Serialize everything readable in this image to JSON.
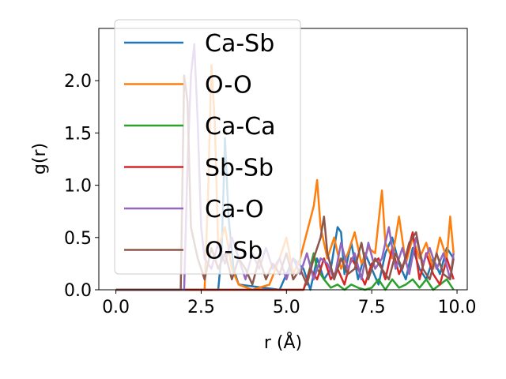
{
  "chart_data": {
    "type": "line",
    "xlabel": "r (Å)",
    "ylabel": "g(r)",
    "xlim": [
      -0.5,
      10.3
    ],
    "ylim": [
      0.0,
      2.5
    ],
    "xticks": [
      0.0,
      2.5,
      5.0,
      7.5,
      10.0
    ],
    "xtick_labels": [
      "0.0",
      "2.5",
      "5.0",
      "7.5",
      "10.0"
    ],
    "yticks": [
      0.0,
      0.5,
      1.0,
      1.5,
      2.0
    ],
    "ytick_labels": [
      "0.0",
      "0.5",
      "1.0",
      "1.5",
      "2.0"
    ],
    "grid": false,
    "legend_position": "upper left",
    "series": [
      {
        "name": "Ca-Sb",
        "color": "#1f77b4",
        "points": [
          [
            0,
            0
          ],
          [
            3.0,
            0
          ],
          [
            3.1,
            0.35
          ],
          [
            3.2,
            1.45
          ],
          [
            3.3,
            0.7
          ],
          [
            3.45,
            0.2
          ],
          [
            3.6,
            0.05
          ],
          [
            4.8,
            0
          ],
          [
            5.0,
            0.15
          ],
          [
            5.2,
            0.3
          ],
          [
            5.5,
            0.2
          ],
          [
            5.7,
            0.0
          ],
          [
            5.9,
            0.3
          ],
          [
            6.1,
            0.1
          ],
          [
            6.3,
            0.2
          ],
          [
            6.5,
            0.6
          ],
          [
            6.6,
            0.55
          ],
          [
            6.7,
            0.15
          ],
          [
            6.9,
            0.45
          ],
          [
            7.1,
            0.1
          ],
          [
            7.3,
            0.35
          ],
          [
            7.5,
            0.2
          ],
          [
            7.7,
            0.05
          ],
          [
            7.9,
            0.35
          ],
          [
            8.1,
            0.5
          ],
          [
            8.3,
            0.25
          ],
          [
            8.5,
            0.1
          ],
          [
            8.7,
            0.4
          ],
          [
            8.9,
            0.2
          ],
          [
            9.1,
            0.1
          ],
          [
            9.3,
            0.3
          ],
          [
            9.5,
            0.15
          ],
          [
            9.7,
            0.4
          ],
          [
            9.9,
            0.3
          ]
        ]
      },
      {
        "name": "O-O",
        "color": "#ff7f0e",
        "points": [
          [
            0,
            0
          ],
          [
            2.6,
            0
          ],
          [
            2.7,
            0.9
          ],
          [
            2.8,
            2.15
          ],
          [
            2.9,
            1.6
          ],
          [
            3.0,
            0.4
          ],
          [
            3.2,
            0.6
          ],
          [
            3.4,
            0.2
          ],
          [
            3.6,
            0.05
          ],
          [
            4.0,
            0
          ],
          [
            4.5,
            0.05
          ],
          [
            4.8,
            0.3
          ],
          [
            5.0,
            0.5
          ],
          [
            5.2,
            0.15
          ],
          [
            5.4,
            0.3
          ],
          [
            5.6,
            0.55
          ],
          [
            5.8,
            0.8
          ],
          [
            5.9,
            1.05
          ],
          [
            6.0,
            0.6
          ],
          [
            6.2,
            0.3
          ],
          [
            6.4,
            0.5
          ],
          [
            6.6,
            0.2
          ],
          [
            6.8,
            0.35
          ],
          [
            7.0,
            0.55
          ],
          [
            7.2,
            0.25
          ],
          [
            7.4,
            0.4
          ],
          [
            7.6,
            0.35
          ],
          [
            7.8,
            0.95
          ],
          [
            7.9,
            0.45
          ],
          [
            8.1,
            0.3
          ],
          [
            8.3,
            0.7
          ],
          [
            8.5,
            0.25
          ],
          [
            8.7,
            0.5
          ],
          [
            8.9,
            0.3
          ],
          [
            9.1,
            0.45
          ],
          [
            9.3,
            0.2
          ],
          [
            9.5,
            0.5
          ],
          [
            9.7,
            0.3
          ],
          [
            9.8,
            0.7
          ],
          [
            9.9,
            0.35
          ]
        ]
      },
      {
        "name": "Ca-Ca",
        "color": "#2ca02c",
        "points": [
          [
            0,
            0
          ],
          [
            5.5,
            0
          ],
          [
            5.6,
            0.1
          ],
          [
            5.8,
            0.35
          ],
          [
            5.9,
            0.2
          ],
          [
            6.1,
            0.1
          ],
          [
            6.3,
            0.02
          ],
          [
            6.5,
            0.05
          ],
          [
            6.7,
            0.0
          ],
          [
            6.9,
            0.05
          ],
          [
            7.1,
            0.02
          ],
          [
            7.3,
            0.0
          ],
          [
            7.5,
            0.02
          ],
          [
            7.7,
            0.1
          ],
          [
            7.9,
            0.0
          ],
          [
            8.1,
            0.1
          ],
          [
            8.3,
            0.02
          ],
          [
            8.5,
            0.05
          ],
          [
            8.7,
            0.1
          ],
          [
            8.9,
            0.02
          ],
          [
            9.1,
            0.1
          ],
          [
            9.3,
            0.0
          ],
          [
            9.5,
            0.05
          ],
          [
            9.7,
            0.1
          ],
          [
            9.9,
            0.0
          ]
        ]
      },
      {
        "name": "Sb-Sb",
        "color": "#d62728",
        "points": [
          [
            0,
            0
          ],
          [
            5.5,
            0
          ],
          [
            5.7,
            0.2
          ],
          [
            5.9,
            0.1
          ],
          [
            6.1,
            0.3
          ],
          [
            6.3,
            0.1
          ],
          [
            6.5,
            0.2
          ],
          [
            6.7,
            0.05
          ],
          [
            6.9,
            0.3
          ],
          [
            7.1,
            0.2
          ],
          [
            7.3,
            0.05
          ],
          [
            7.5,
            0.25
          ],
          [
            7.7,
            0.3
          ],
          [
            7.9,
            0.1
          ],
          [
            8.1,
            0.4
          ],
          [
            8.3,
            0.15
          ],
          [
            8.5,
            0.3
          ],
          [
            8.7,
            0.55
          ],
          [
            8.9,
            0.1
          ],
          [
            9.1,
            0.35
          ],
          [
            9.3,
            0.15
          ],
          [
            9.5,
            0.05
          ],
          [
            9.7,
            0.3
          ],
          [
            9.9,
            0.1
          ]
        ]
      },
      {
        "name": "Ca-O",
        "color": "#9467bd",
        "points": [
          [
            0,
            0
          ],
          [
            2.0,
            0
          ],
          [
            2.1,
            1.2
          ],
          [
            2.2,
            2.05
          ],
          [
            2.3,
            2.35
          ],
          [
            2.4,
            1.6
          ],
          [
            2.5,
            0.6
          ],
          [
            2.6,
            0.3
          ],
          [
            2.8,
            0.2
          ],
          [
            3.0,
            0.45
          ],
          [
            3.2,
            0.25
          ],
          [
            3.4,
            0.5
          ],
          [
            3.6,
            0.3
          ],
          [
            3.8,
            0.1
          ],
          [
            4.0,
            0.35
          ],
          [
            4.2,
            0.2
          ],
          [
            4.4,
            0.4
          ],
          [
            4.6,
            0.2
          ],
          [
            4.8,
            0.3
          ],
          [
            5.0,
            0.1
          ],
          [
            5.2,
            0.3
          ],
          [
            5.4,
            0.15
          ],
          [
            5.6,
            0.35
          ],
          [
            5.8,
            0.1
          ],
          [
            6.0,
            0.3
          ],
          [
            6.2,
            0.25
          ],
          [
            6.4,
            0.1
          ],
          [
            6.6,
            0.45
          ],
          [
            6.8,
            0.2
          ],
          [
            7.0,
            0.35
          ],
          [
            7.2,
            0.1
          ],
          [
            7.4,
            0.45
          ],
          [
            7.6,
            0.2
          ],
          [
            7.8,
            0.3
          ],
          [
            8.0,
            0.6
          ],
          [
            8.2,
            0.2
          ],
          [
            8.4,
            0.4
          ],
          [
            8.6,
            0.15
          ],
          [
            8.8,
            0.5
          ],
          [
            9.0,
            0.25
          ],
          [
            9.2,
            0.4
          ],
          [
            9.4,
            0.2
          ],
          [
            9.6,
            0.35
          ],
          [
            9.8,
            0.1
          ],
          [
            9.9,
            0.35
          ]
        ]
      },
      {
        "name": "O-Sb",
        "color": "#8c564b",
        "points": [
          [
            0,
            0
          ],
          [
            1.9,
            0
          ],
          [
            2.0,
            2.05
          ],
          [
            2.1,
            1.8
          ],
          [
            2.2,
            0.6
          ],
          [
            2.4,
            0.3
          ],
          [
            2.6,
            0.1
          ],
          [
            2.8,
            0.4
          ],
          [
            3.0,
            0.2
          ],
          [
            3.2,
            0.35
          ],
          [
            3.4,
            0.1
          ],
          [
            3.6,
            0.3
          ],
          [
            3.8,
            0.2
          ],
          [
            4.0,
            0.05
          ],
          [
            4.2,
            0.3
          ],
          [
            4.4,
            0.1
          ],
          [
            4.6,
            0.25
          ],
          [
            4.8,
            0.15
          ],
          [
            5.0,
            0.35
          ],
          [
            5.2,
            0.1
          ],
          [
            5.4,
            0.2
          ],
          [
            5.6,
            0.05
          ],
          [
            5.8,
            0.3
          ],
          [
            6.0,
            0.5
          ],
          [
            6.1,
            0.7
          ],
          [
            6.2,
            0.35
          ],
          [
            6.4,
            0.1
          ],
          [
            6.6,
            0.3
          ],
          [
            6.8,
            0.15
          ],
          [
            7.0,
            0.2
          ],
          [
            7.2,
            0.45
          ],
          [
            7.4,
            0.1
          ],
          [
            7.6,
            0.3
          ],
          [
            7.8,
            0.2
          ],
          [
            8.0,
            0.1
          ],
          [
            8.2,
            0.35
          ],
          [
            8.4,
            0.2
          ],
          [
            8.6,
            0.45
          ],
          [
            8.8,
            0.55
          ],
          [
            9.0,
            0.2
          ],
          [
            9.2,
            0.1
          ],
          [
            9.4,
            0.35
          ],
          [
            9.6,
            0.15
          ],
          [
            9.8,
            0.1
          ],
          [
            9.9,
            0.3
          ]
        ]
      }
    ]
  }
}
